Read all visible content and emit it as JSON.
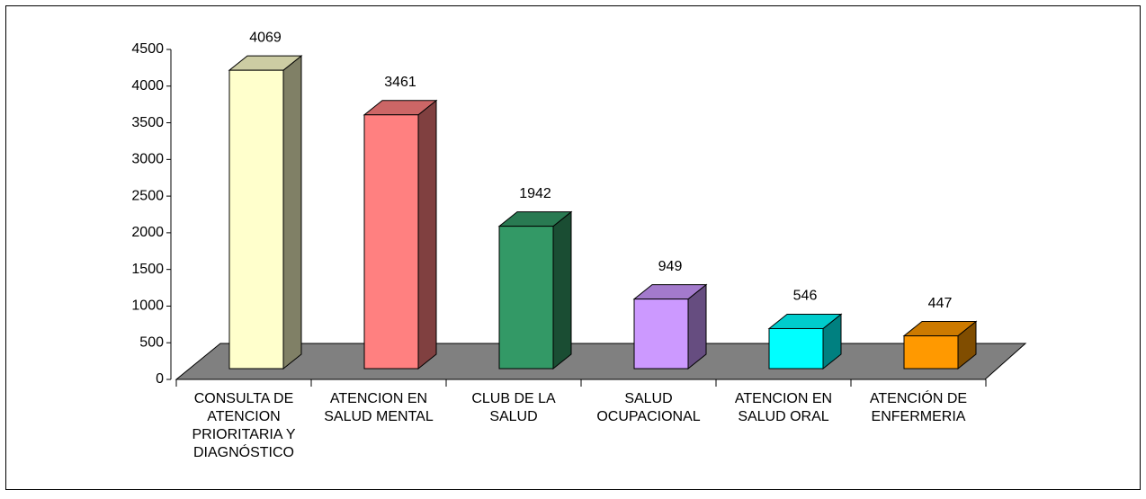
{
  "chart_data": {
    "type": "bar3d",
    "categories": [
      "CONSULTA DE\nATENCION\nPRIORITARIA Y\nDIAGNÓSTICO",
      "ATENCION EN\nSALUD MENTAL",
      "CLUB DE LA\nSALUD",
      "SALUD\nOCUPACIONAL",
      "ATENCION EN\nSALUD ORAL",
      "ATENCIÓN DE\nENFERMERIA"
    ],
    "values": [
      4069,
      3461,
      1942,
      949,
      546,
      447
    ],
    "colors": [
      "#FFFFCC",
      "#FF8080",
      "#339966",
      "#CC99FF",
      "#00FFFF",
      "#FF9900"
    ],
    "ylim": [
      0,
      4500
    ],
    "yticks": [
      0,
      500,
      1000,
      1500,
      2000,
      2500,
      3000,
      3500,
      4000,
      4500
    ]
  }
}
